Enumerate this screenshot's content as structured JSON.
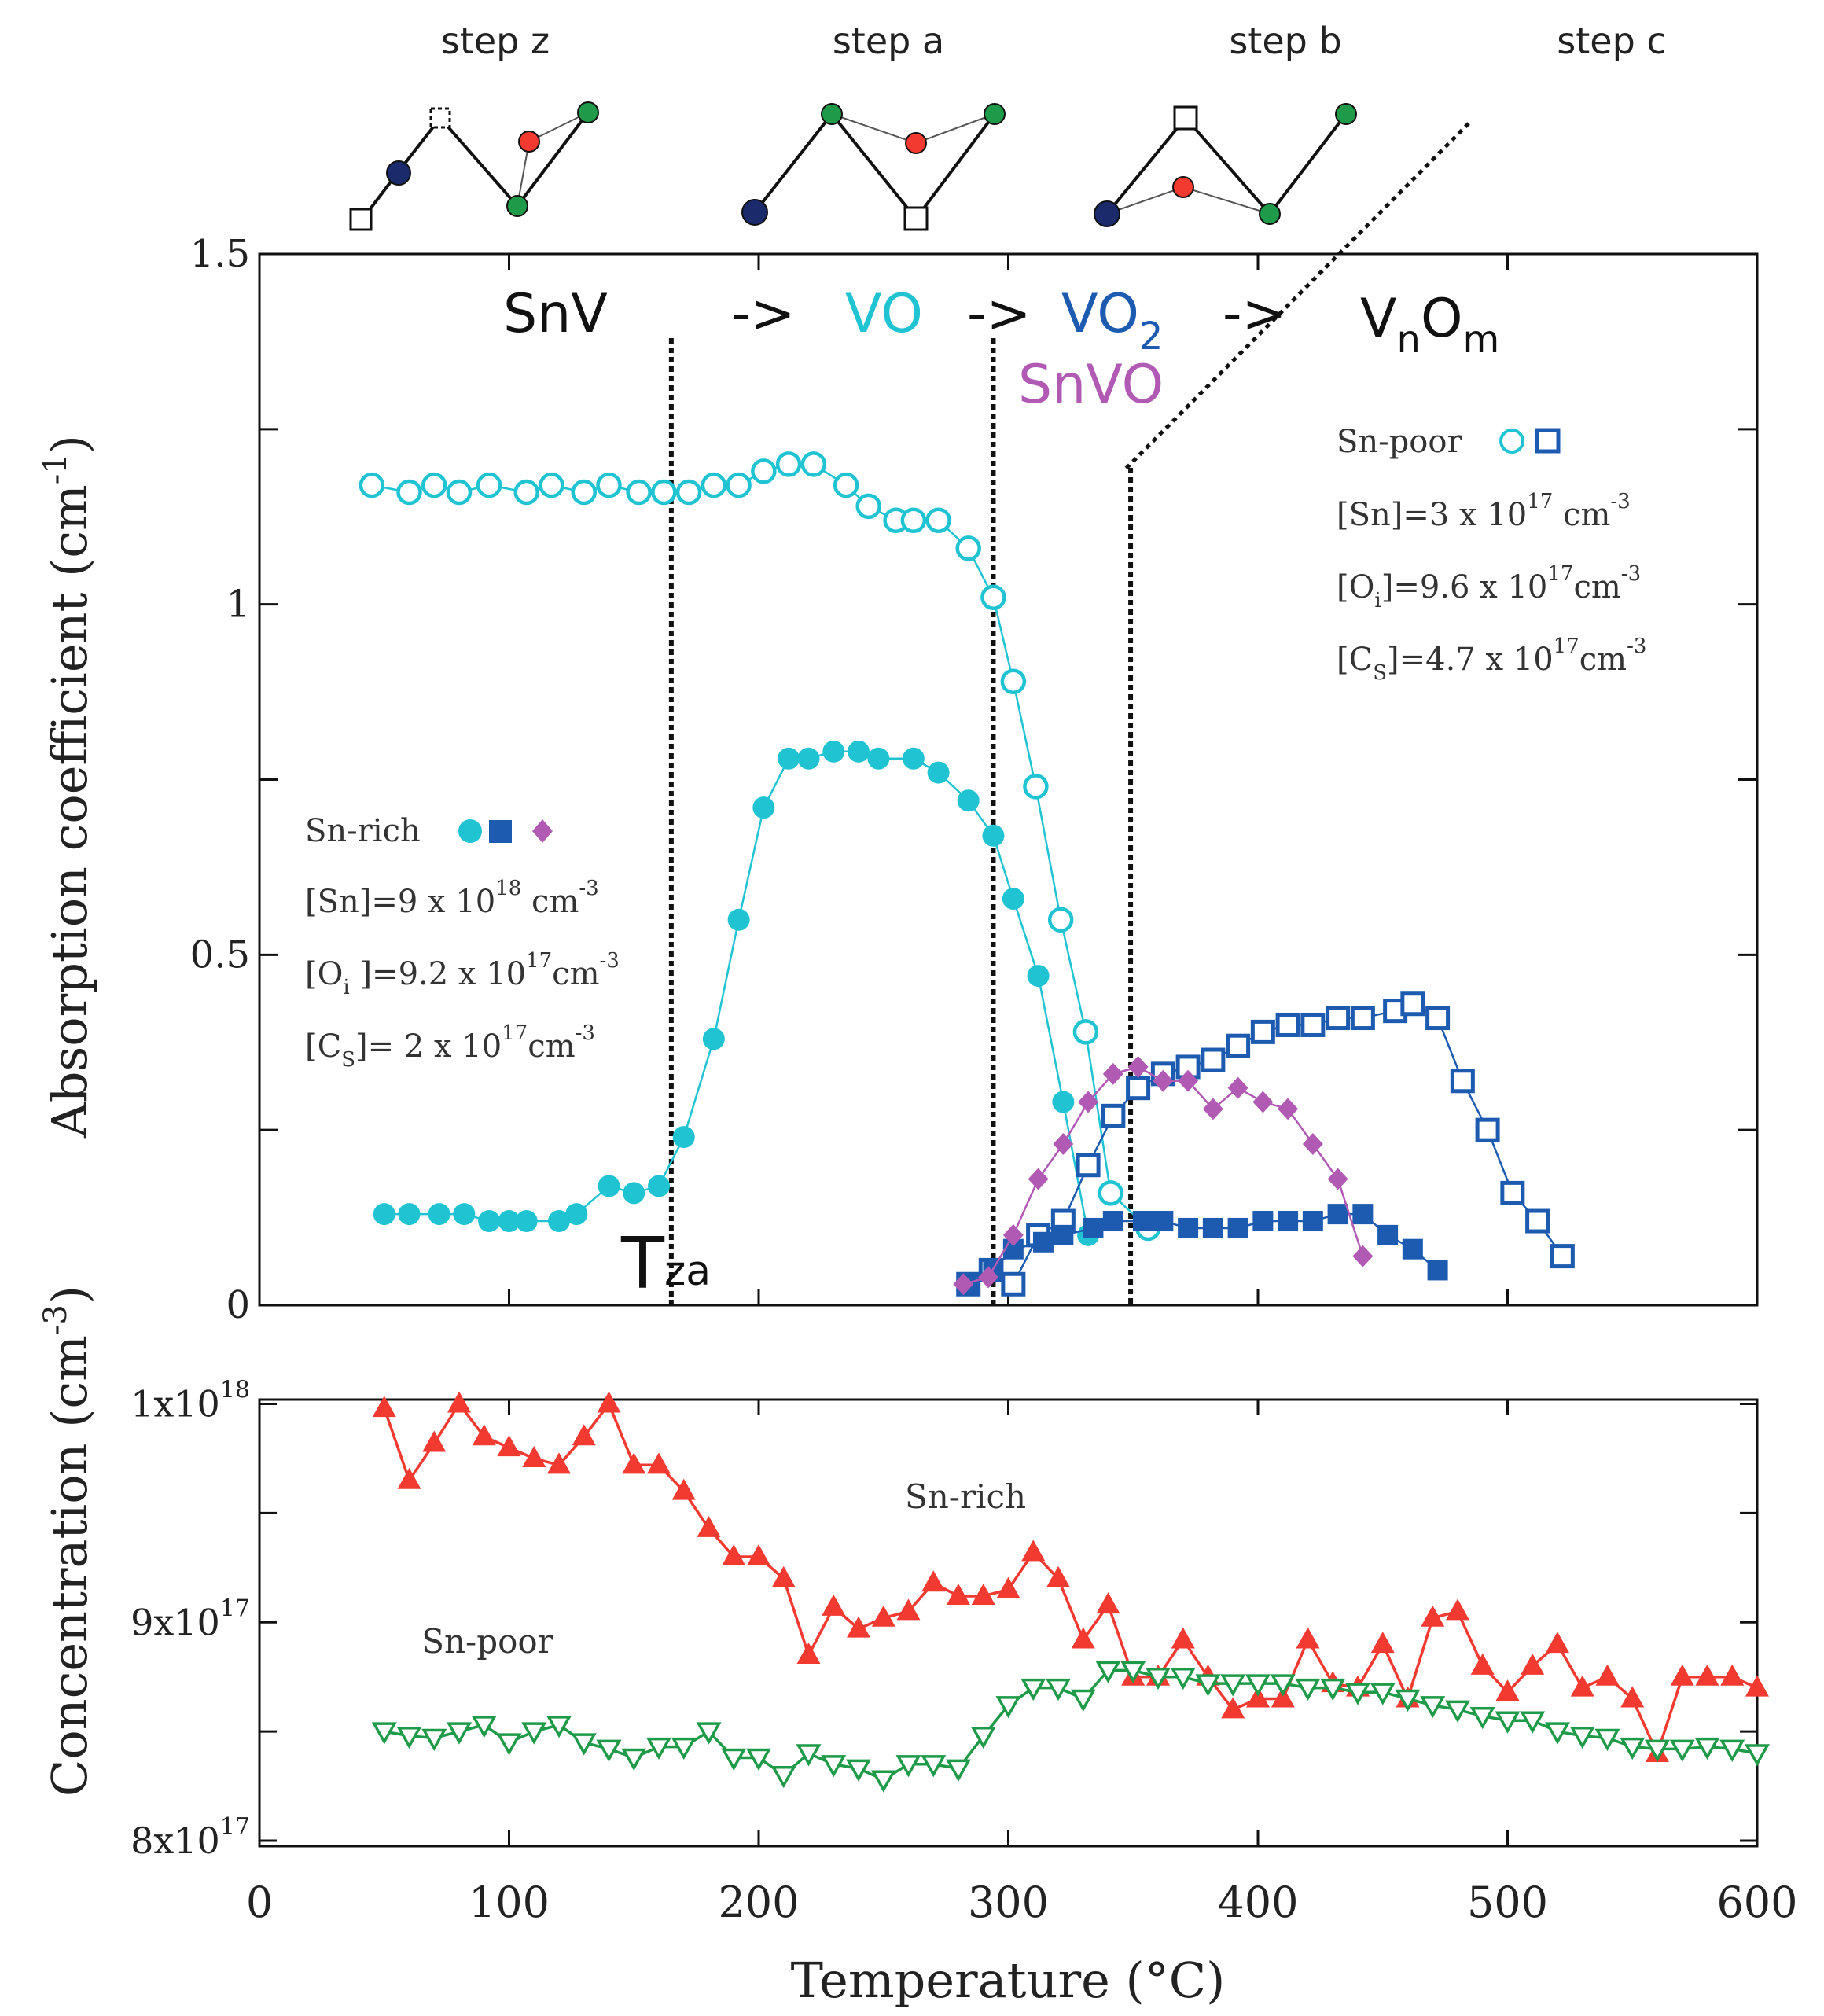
{
  "colors": {
    "cyan": "#1fc3d2",
    "blue": "#1c5bb0",
    "purple": "#b05ab4",
    "red": "#f23a30",
    "green": "#1f9a48",
    "navy": "#1a2a6b",
    "black": "#111111"
  },
  "steps": {
    "labels": [
      "step z",
      "step a",
      "step b",
      "step c"
    ],
    "diagram_icons": [
      "sn-ball-icon",
      "vacancy-square-icon",
      "oxygen-red-ball-icon",
      "silicon-green-ball-icon"
    ]
  },
  "sequence": {
    "snv": "SnV",
    "arrow1": "->",
    "vo": "VO",
    "arrow2": "->",
    "vo2_main": "VO",
    "vo2_sub": "2",
    "arrow3": "->",
    "vnom_v": "V",
    "vnom_n": "n",
    "vnom_o": "O",
    "vnom_m": "m",
    "snvo": "SnVO"
  },
  "tza": {
    "main": "T",
    "sub": "za"
  },
  "legends": {
    "sn_poor": {
      "title": "Sn-poor",
      "lines": [
        {
          "pre": "[Sn]=3 x 10",
          "exp": "17",
          "post": " cm",
          "unit_exp": "-3"
        },
        {
          "pre": "[O",
          "sub": "i",
          "mid": "]=9.6 x 10",
          "exp": "17",
          "post": "cm",
          "unit_exp": "-3"
        },
        {
          "pre": "[C",
          "sub": "S",
          "mid": "]=4.7 x 10",
          "exp": "17",
          "post": "cm",
          "unit_exp": "-3"
        }
      ]
    },
    "sn_rich": {
      "title": "Sn-rich",
      "lines": [
        {
          "pre": "[Sn]=9 x 10",
          "exp": "18",
          "post": " cm",
          "unit_exp": "-3"
        },
        {
          "pre": "[O",
          "sub": "i",
          "mid": " ]=9.2 x 10",
          "exp": "17",
          "post": "cm",
          "unit_exp": "-3"
        },
        {
          "pre": "[C",
          "sub": "S",
          "mid": "]= 2 x 10",
          "exp": "17",
          "post": "cm",
          "unit_exp": "-3"
        }
      ]
    }
  },
  "lower_labels": {
    "sn_rich": "Sn-rich",
    "sn_poor": "Sn-poor"
  },
  "chart_data": [
    {
      "type": "scatter",
      "title": "",
      "ylabel": "Absorption coefficient  (cm",
      "ylabel_exp": "-1",
      "ylabel_close": ")",
      "xlim": [
        0,
        600
      ],
      "ylim": [
        0,
        1.5
      ],
      "ytick_labels": [
        "0",
        "0.5",
        "1",
        "1.5"
      ],
      "yticks": [
        0,
        0.5,
        1,
        1.5
      ],
      "vlines": [
        165,
        294,
        349
      ],
      "series": [
        {
          "name": "VO Sn-poor",
          "color": "cyan",
          "marker": "circle-open",
          "x": [
            45,
            60,
            70,
            80,
            92,
            107,
            117,
            130,
            140,
            152,
            162,
            172,
            182,
            192,
            202,
            212,
            222,
            235,
            244,
            255,
            262,
            272,
            284,
            294,
            302,
            311,
            321,
            331,
            341,
            356
          ],
          "y": [
            1.17,
            1.16,
            1.17,
            1.16,
            1.17,
            1.16,
            1.17,
            1.16,
            1.17,
            1.16,
            1.16,
            1.16,
            1.17,
            1.17,
            1.19,
            1.2,
            1.2,
            1.17,
            1.14,
            1.12,
            1.12,
            1.12,
            1.08,
            1.01,
            0.89,
            0.74,
            0.55,
            0.39,
            0.16,
            0.11
          ]
        },
        {
          "name": "VO Sn-rich",
          "color": "cyan",
          "marker": "circle-filled",
          "x": [
            50,
            60,
            72,
            82,
            92,
            100,
            107,
            120,
            127,
            140,
            150,
            160,
            170,
            182,
            192,
            202,
            212,
            220,
            230,
            240,
            248,
            262,
            272,
            284,
            294,
            302,
            312,
            322,
            332
          ],
          "y": [
            0.13,
            0.13,
            0.13,
            0.13,
            0.12,
            0.12,
            0.12,
            0.12,
            0.13,
            0.17,
            0.16,
            0.17,
            0.24,
            0.38,
            0.55,
            0.71,
            0.78,
            0.78,
            0.79,
            0.79,
            0.78,
            0.78,
            0.76,
            0.72,
            0.67,
            0.58,
            0.47,
            0.29,
            0.1
          ]
        },
        {
          "name": "VO2 Sn-poor",
          "color": "blue",
          "marker": "square-open",
          "x": [
            284,
            293,
            302,
            312,
            322,
            332,
            342,
            352,
            362,
            372,
            382,
            392,
            402,
            412,
            422,
            432,
            442,
            455,
            462,
            472,
            482,
            492,
            502,
            512,
            522
          ],
          "y": [
            0.03,
            0.05,
            0.03,
            0.1,
            0.12,
            0.2,
            0.27,
            0.31,
            0.33,
            0.34,
            0.35,
            0.37,
            0.39,
            0.4,
            0.4,
            0.41,
            0.41,
            0.42,
            0.43,
            0.41,
            0.32,
            0.25,
            0.16,
            0.12,
            0.07
          ]
        },
        {
          "name": "VO2 Sn-rich",
          "color": "blue",
          "marker": "square-filled",
          "x": [
            284,
            294,
            302,
            314,
            322,
            334,
            342,
            354,
            362,
            372,
            382,
            392,
            402,
            412,
            422,
            432,
            442,
            452,
            462,
            472
          ],
          "y": [
            0.03,
            0.05,
            0.08,
            0.09,
            0.1,
            0.11,
            0.12,
            0.12,
            0.12,
            0.11,
            0.11,
            0.11,
            0.12,
            0.12,
            0.12,
            0.13,
            0.13,
            0.1,
            0.08,
            0.05
          ]
        },
        {
          "name": "SnVO Sn-rich",
          "color": "purple",
          "marker": "diamond-filled",
          "x": [
            282,
            292,
            302,
            312,
            322,
            332,
            342,
            352,
            362,
            372,
            382,
            392,
            402,
            412,
            422,
            432,
            442
          ],
          "y": [
            0.03,
            0.04,
            0.1,
            0.18,
            0.23,
            0.29,
            0.33,
            0.34,
            0.32,
            0.32,
            0.28,
            0.31,
            0.29,
            0.28,
            0.23,
            0.18,
            0.07
          ]
        }
      ]
    },
    {
      "type": "scatter",
      "title": "",
      "xlabel": "Temperature (°C)",
      "ylabel": "Concentration (cm",
      "ylabel_exp": "-3",
      "ylabel_close": ")",
      "xlim": [
        0,
        600
      ],
      "ylim": [
        7.975e+17,
        1.002e+18
      ],
      "xticks": [
        0,
        100,
        200,
        300,
        400,
        500,
        600
      ],
      "xtick_labels": [
        "0",
        "100",
        "200",
        "300",
        "400",
        "500",
        "600"
      ],
      "ytick_labels": [
        {
          "mant": "8x10",
          "exp": "17",
          "value": 8e+17
        },
        {
          "mant": "9x10",
          "exp": "17",
          "value": 9e+17
        },
        {
          "mant": "1x10",
          "exp": "18",
          "value": 1e+18
        }
      ],
      "series": [
        {
          "name": "Sn-rich",
          "color": "red",
          "marker": "triangle-up-filled",
          "x": [
            50,
            60,
            70,
            80,
            90,
            100,
            110,
            120,
            130,
            140,
            150,
            160,
            170,
            180,
            190,
            200,
            210,
            220,
            230,
            240,
            250,
            260,
            270,
            280,
            290,
            300,
            310,
            320,
            330,
            340,
            350,
            360,
            370,
            380,
            390,
            400,
            410,
            420,
            430,
            440,
            450,
            460,
            470,
            480,
            490,
            500,
            510,
            520,
            530,
            540,
            550,
            560,
            570,
            580,
            590,
            600
          ],
          "y": [
            9.98e+17,
            9.65e+17,
            9.82e+17,
            1e+18,
            9.85e+17,
            9.8e+17,
            9.75e+17,
            9.72e+17,
            9.85e+17,
            1e+18,
            9.72e+17,
            9.72e+17,
            9.6e+17,
            9.43e+17,
            9.3e+17,
            9.3e+17,
            9.2e+17,
            8.85e+17,
            9.07e+17,
            8.97e+17,
            9.02e+17,
            9.05e+17,
            9.18e+17,
            9.12e+17,
            9.12e+17,
            9.15e+17,
            9.32e+17,
            9.2e+17,
            8.92e+17,
            9.08e+17,
            8.75e+17,
            8.75e+17,
            8.92e+17,
            8.75e+17,
            8.6e+17,
            8.65e+17,
            8.65e+17,
            8.92e+17,
            8.72e+17,
            8.7e+17,
            8.9e+17,
            8.65e+17,
            9.02e+17,
            9.05e+17,
            8.8e+17,
            8.68e+17,
            8.8e+17,
            8.9e+17,
            8.7e+17,
            8.75e+17,
            8.65e+17,
            8.4e+17,
            8.75e+17,
            8.75e+17,
            8.75e+17,
            8.7e+17
          ]
        },
        {
          "name": "Sn-poor",
          "color": "green",
          "marker": "triangle-down-open",
          "x": [
            50,
            60,
            70,
            80,
            90,
            100,
            110,
            120,
            130,
            140,
            150,
            160,
            170,
            180,
            190,
            200,
            210,
            220,
            230,
            240,
            250,
            260,
            270,
            280,
            290,
            300,
            310,
            320,
            330,
            340,
            350,
            360,
            370,
            380,
            390,
            400,
            410,
            420,
            430,
            440,
            450,
            460,
            470,
            480,
            490,
            500,
            510,
            520,
            530,
            540,
            550,
            560,
            570,
            580,
            590,
            600
          ],
          "y": [
            8.5e+17,
            8.48e+17,
            8.47e+17,
            8.5e+17,
            8.53e+17,
            8.45e+17,
            8.5e+17,
            8.53e+17,
            8.45e+17,
            8.42e+17,
            8.38e+17,
            8.43e+17,
            8.43e+17,
            8.5e+17,
            8.38e+17,
            8.38e+17,
            8.3e+17,
            8.4e+17,
            8.35e+17,
            8.33e+17,
            8.28e+17,
            8.35e+17,
            8.35e+17,
            8.33e+17,
            8.48e+17,
            8.62e+17,
            8.7e+17,
            8.7e+17,
            8.65e+17,
            8.78e+17,
            8.78e+17,
            8.75e+17,
            8.75e+17,
            8.72e+17,
            8.72e+17,
            8.72e+17,
            8.72e+17,
            8.7e+17,
            8.7e+17,
            8.68e+17,
            8.68e+17,
            8.65e+17,
            8.62e+17,
            8.6e+17,
            8.57e+17,
            8.55e+17,
            8.55e+17,
            8.5e+17,
            8.48e+17,
            8.47e+17,
            8.43e+17,
            8.42e+17,
            8.42e+17,
            8.43e+17,
            8.42e+17,
            8.4e+17
          ]
        }
      ]
    }
  ]
}
